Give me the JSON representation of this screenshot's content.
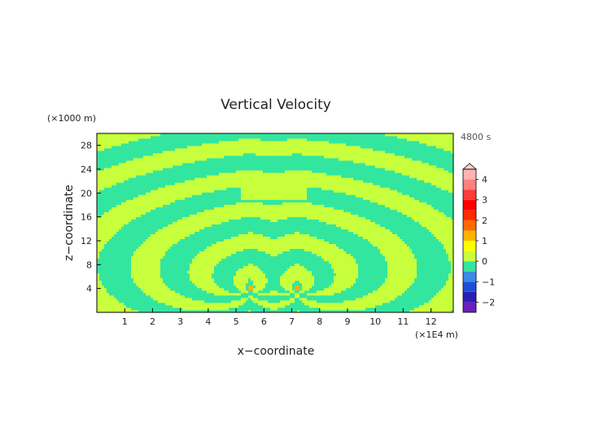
{
  "chart_data": {
    "type": "heatmap",
    "title": "Vertical Velocity",
    "xlabel": "x−coordinate",
    "ylabel": "z−coordinate",
    "x_unit_label": "(×1E4 m)",
    "y_unit_label": "(×1000 m)",
    "time_label": "4800 s",
    "xlim": [
      0,
      12.8
    ],
    "ylim": [
      0,
      30
    ],
    "x_ticks": [
      1,
      2,
      3,
      4,
      5,
      6,
      7,
      8,
      9,
      10,
      11,
      12
    ],
    "y_ticks": [
      4,
      8,
      12,
      16,
      20,
      24,
      28
    ],
    "colorbar": {
      "labels": [
        4,
        3,
        2,
        1,
        0,
        -1,
        -2
      ],
      "levels": [
        -2.5,
        -2,
        -1.5,
        -1,
        -0.5,
        0,
        0.5,
        1,
        1.5,
        2,
        2.5,
        3,
        3.5,
        4,
        4.5
      ],
      "colors": [
        "#6a1fbf",
        "#2a1fb0",
        "#1f4fd8",
        "#3b8be8",
        "#33e6a0",
        "#c8ff3c",
        "#ffff00",
        "#ffb300",
        "#ff6a00",
        "#ff2a00",
        "#ff0000",
        "#ff3b3b",
        "#ff7f7f",
        "#ffb3b3"
      ]
    },
    "field_description": "Negative background (~ -0.3) with positive (~0.3) bands radiating upward and outward from two sources near x=5.5 and x=7.2, z~4",
    "background_value": -0.3,
    "band_value": 0.3,
    "source_points": [
      [
        5.5,
        4.0
      ],
      [
        7.2,
        4.0
      ]
    ],
    "source_value": 1.2
  }
}
